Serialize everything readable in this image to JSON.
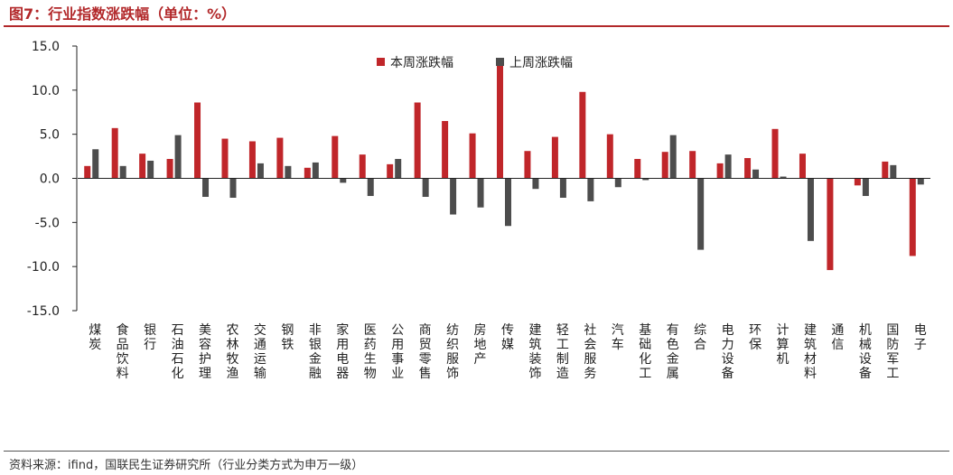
{
  "title": "图7：行业指数涨跌幅（单位：%）",
  "source": "资料来源：ifind，国联民生证券研究所（行业分类方式为申万一级）",
  "chart_data": {
    "type": "bar",
    "categories": [
      "煤炭",
      "食品饮料",
      "银行",
      "石油石化",
      "美容护理",
      "农林牧渔",
      "交通运输",
      "钢铁",
      "非银金融",
      "家用电器",
      "医药生物",
      "公用事业",
      "商贸零售",
      "纺织服饰",
      "房地产",
      "传媒",
      "建筑装饰",
      "轻工制造",
      "社会服务",
      "汽车",
      "基础化工",
      "有色金属",
      "综合",
      "电力设备",
      "环保",
      "计算机",
      "建筑材料",
      "通信",
      "机械设备",
      "国防军工",
      "电子"
    ],
    "series": [
      {
        "name": "本周涨跌幅",
        "color": "#c0262a",
        "values": [
          1.4,
          5.7,
          2.8,
          2.2,
          8.6,
          4.5,
          4.2,
          4.6,
          1.2,
          4.8,
          2.7,
          1.6,
          8.6,
          6.5,
          5.1,
          12.8,
          3.1,
          4.7,
          9.8,
          5.0,
          2.2,
          3.0,
          3.1,
          1.7,
          2.3,
          5.6,
          2.8,
          -10.4,
          -0.8,
          1.9,
          -8.8
        ]
      },
      {
        "name": "上周涨跌幅",
        "color": "#4d4d4d",
        "values": [
          3.3,
          1.4,
          2.0,
          4.9,
          -2.1,
          -2.2,
          1.7,
          1.4,
          1.8,
          -0.5,
          -2.0,
          2.2,
          -2.1,
          -4.1,
          -3.3,
          -5.4,
          -1.2,
          -2.2,
          -2.6,
          -1.0,
          -0.2,
          4.9,
          -8.1,
          2.7,
          1.0,
          0.2,
          -7.1,
          0.0,
          -2.0,
          1.5,
          -0.7
        ]
      }
    ],
    "ylim": [
      -15,
      15
    ],
    "yticks": [
      "15.0",
      "10.0",
      "5.0",
      "0.0",
      "-5.0",
      "-10.0",
      "-15.0"
    ],
    "legend_position": "top-center",
    "grid": false
  }
}
